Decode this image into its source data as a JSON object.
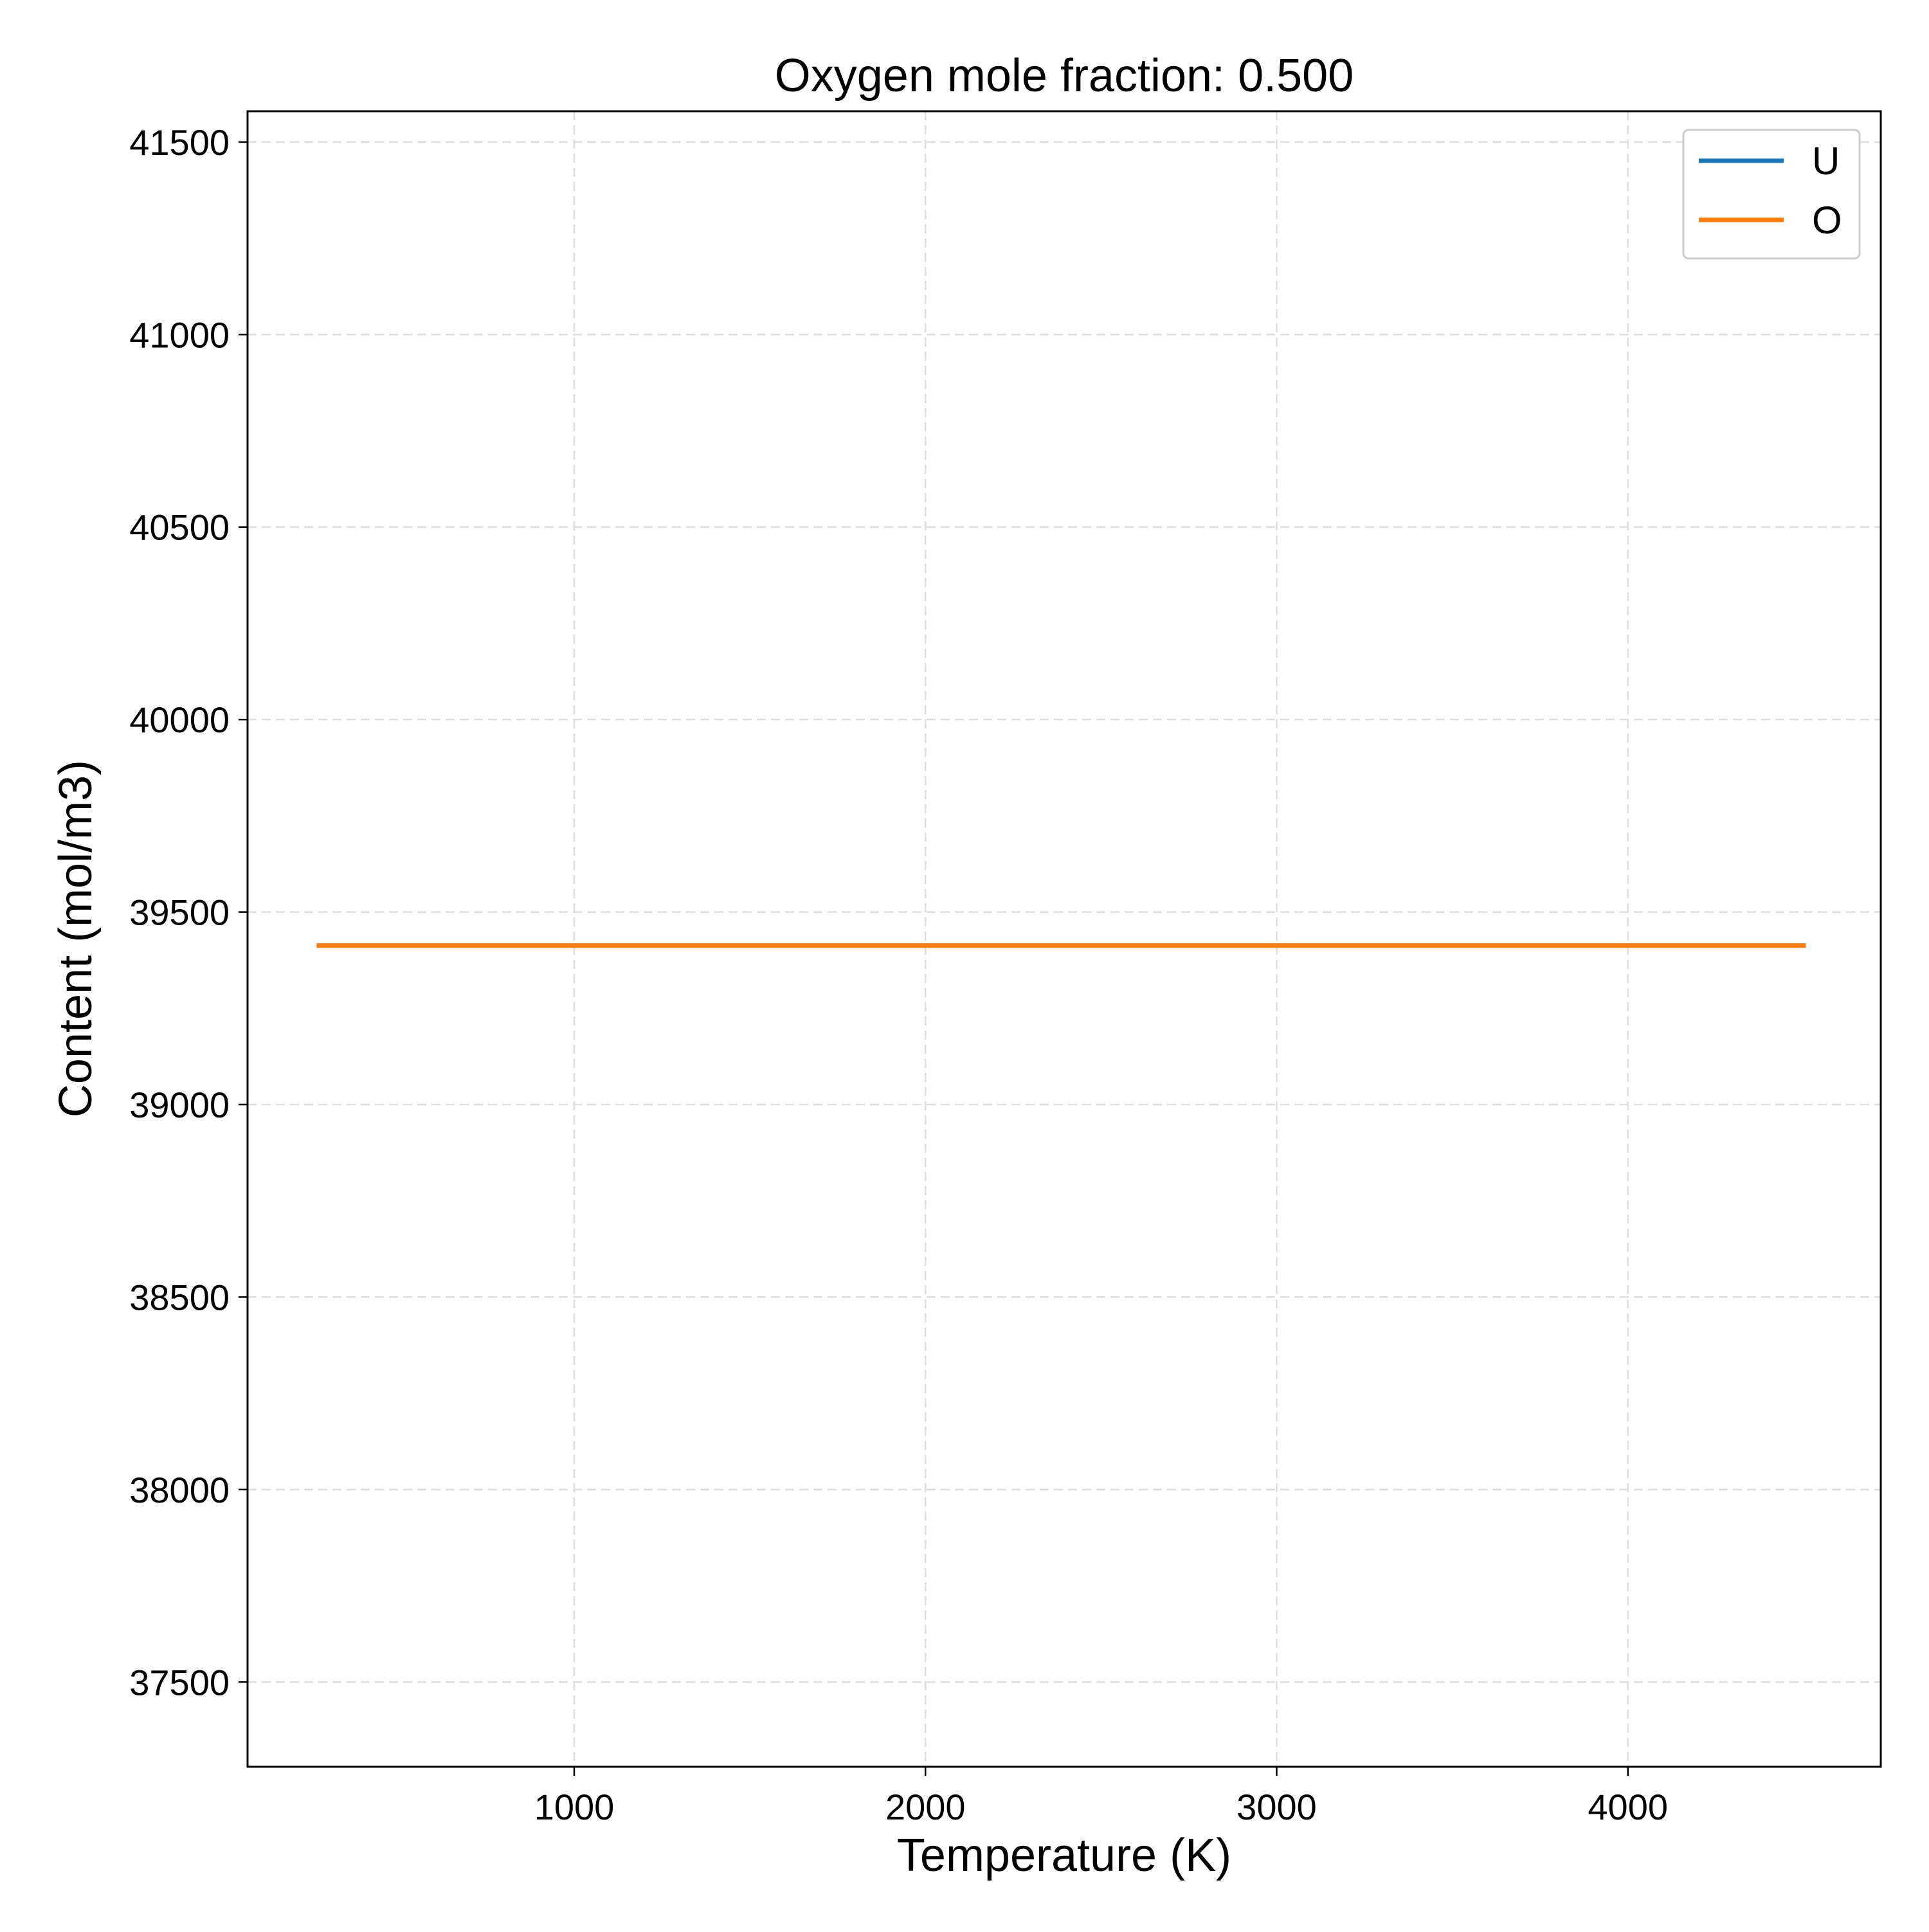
{
  "chart_data": {
    "type": "line",
    "title": "Oxygen mole fraction: 0.500",
    "xlabel": "Temperature (K)",
    "ylabel": "Content (mol/m3)",
    "xlim": [
      70,
      4720
    ],
    "ylim": [
      37280,
      41580
    ],
    "xticks": [
      1000,
      2000,
      3000,
      4000
    ],
    "xtick_labels": [
      "1000",
      "2000",
      "3000",
      "4000"
    ],
    "yticks": [
      37500,
      38000,
      38500,
      39000,
      39500,
      40000,
      40500,
      41000,
      41500
    ],
    "ytick_labels": [
      "37500",
      "38000",
      "38500",
      "39000",
      "39500",
      "40000",
      "40500",
      "41000",
      "41500"
    ],
    "grid": true,
    "legend_position": "top-right",
    "series": [
      {
        "name": "U",
        "color": "#1f77b4",
        "x": [
          273,
          4500
        ],
        "y": [
          39413,
          39413
        ]
      },
      {
        "name": "O",
        "color": "#ff7f0e",
        "x": [
          273,
          4500
        ],
        "y": [
          39413,
          39413
        ]
      }
    ]
  }
}
